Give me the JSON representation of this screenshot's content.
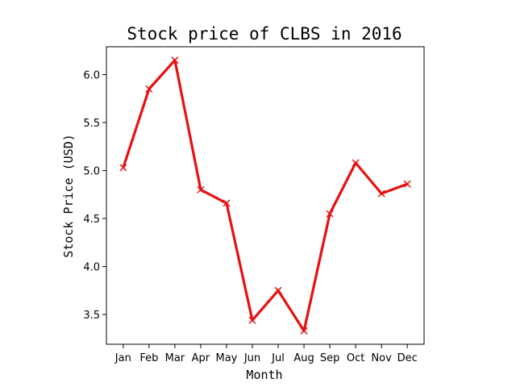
{
  "chart_data": {
    "type": "line",
    "title": "Stock price of CLBS in 2016",
    "xlabel": "Month",
    "ylabel": "Stock Price (USD)",
    "categories": [
      "Jan",
      "Feb",
      "Mar",
      "Apr",
      "May",
      "Jun",
      "Jul",
      "Aug",
      "Sep",
      "Oct",
      "Nov",
      "Dec"
    ],
    "series": [
      {
        "values": [
          5.03,
          5.85,
          6.15,
          4.8,
          4.66,
          3.44,
          3.75,
          3.33,
          4.55,
          5.08,
          4.76,
          4.86
        ],
        "color": "#e81010",
        "marker": "x"
      }
    ],
    "yticks": [
      3.5,
      4.0,
      4.5,
      5.0,
      5.5,
      6.0
    ],
    "ytick_labels": [
      "3.5",
      "4.0",
      "4.5",
      "5.0",
      "5.5",
      "6.0"
    ],
    "ylim": [
      3.19,
      6.29
    ],
    "grid": false,
    "legend": "none"
  }
}
